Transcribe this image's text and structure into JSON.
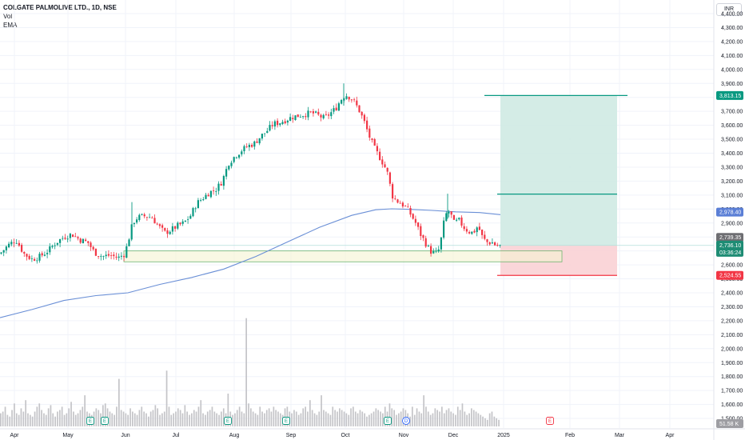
{
  "header": {
    "symbol_title": "COLGATE PALMOLIVE LTD., 1D, NSE",
    "vol_label": "Vol",
    "ema_label": "EMA",
    "currency": "INR"
  },
  "colors": {
    "up": "#089981",
    "down": "#f23645",
    "ema": "#6a8fd6",
    "volume": "#c4c4c8",
    "target_fill": "#cfeae3",
    "stop_fill": "#f9d2d5",
    "target_line": "#089981",
    "stop_line": "#f23645",
    "zone_fill": "#f5f4d2",
    "zone_border": "#6db46f",
    "ema_tag": "#5b7fd6",
    "price_tag": "#1e8c74",
    "gray_tag": "#6e6e72"
  },
  "price_tags": {
    "target": "3,813.15",
    "ema": "2,978.40",
    "prev_close": "2,739.35",
    "last": "2,736.10",
    "countdown": "03:36:24",
    "stop": "2,524.55",
    "volume": "51.58 K"
  },
  "event_markers": [
    "E",
    "E",
    "E",
    "E",
    "E",
    "D",
    "E"
  ],
  "chart_data": {
    "type": "candlestick",
    "title": "COLGATE PALMOLIVE LTD., 1D, NSE",
    "indicators": [
      "Vol",
      "EMA"
    ],
    "ylim": [
      1500,
      4500
    ],
    "yticks": [
      "4,400.00",
      "4,300.00",
      "4,200.00",
      "4,100.00",
      "4,000.00",
      "3,900.00",
      "3,800.00",
      "3,700.00",
      "3,600.00",
      "3,500.00",
      "3,400.00",
      "3,300.00",
      "3,200.00",
      "3,100.00",
      "3,000.00",
      "2,900.00",
      "2,800.00",
      "2,700.00",
      "2,600.00",
      "2,500.00",
      "2,400.00",
      "2,300.00",
      "2,200.00",
      "2,100.00",
      "2,000.00",
      "1,900.00",
      "1,800.00",
      "1,700.00",
      "1,600.00",
      "1,500.00"
    ],
    "xticks": [
      "Apr",
      "May",
      "Jun",
      "Jul",
      "Aug",
      "Sep",
      "Oct",
      "Nov",
      "Dec",
      "2025",
      "Feb",
      "Mar",
      "Apr"
    ],
    "price_path": [
      [
        0,
        2680
      ],
      [
        10,
        2740
      ],
      [
        20,
        2780
      ],
      [
        30,
        2680
      ],
      [
        40,
        2640
      ],
      [
        50,
        2660
      ],
      [
        60,
        2700
      ],
      [
        70,
        2760
      ],
      [
        80,
        2800
      ],
      [
        90,
        2820
      ],
      [
        100,
        2780
      ],
      [
        110,
        2760
      ],
      [
        118,
        2690
      ],
      [
        128,
        2660
      ],
      [
        138,
        2670
      ],
      [
        148,
        2650
      ],
      [
        156,
        2680
      ],
      [
        160,
        2760
      ],
      [
        166,
        2900
      ],
      [
        172,
        2940
      ],
      [
        180,
        2950
      ],
      [
        190,
        2940
      ],
      [
        198,
        2880
      ],
      [
        206,
        2830
      ],
      [
        214,
        2850
      ],
      [
        222,
        2880
      ],
      [
        230,
        2900
      ],
      [
        238,
        2950
      ],
      [
        246,
        3040
      ],
      [
        254,
        3080
      ],
      [
        262,
        3120
      ],
      [
        270,
        3140
      ],
      [
        278,
        3200
      ],
      [
        286,
        3330
      ],
      [
        294,
        3380
      ],
      [
        302,
        3420
      ],
      [
        310,
        3450
      ],
      [
        318,
        3470
      ],
      [
        326,
        3520
      ],
      [
        334,
        3560
      ],
      [
        342,
        3610
      ],
      [
        350,
        3620
      ],
      [
        358,
        3640
      ],
      [
        366,
        3660
      ],
      [
        374,
        3670
      ],
      [
        382,
        3680
      ],
      [
        390,
        3690
      ],
      [
        398,
        3670
      ],
      [
        406,
        3650
      ],
      [
        414,
        3690
      ],
      [
        420,
        3720
      ],
      [
        426,
        3780
      ],
      [
        432,
        3820
      ],
      [
        438,
        3800
      ],
      [
        444,
        3760
      ],
      [
        450,
        3700
      ],
      [
        456,
        3620
      ],
      [
        462,
        3520
      ],
      [
        468,
        3440
      ],
      [
        474,
        3380
      ],
      [
        480,
        3320
      ],
      [
        486,
        3240
      ],
      [
        490,
        3100
      ],
      [
        496,
        3060
      ],
      [
        502,
        3040
      ],
      [
        508,
        3010
      ],
      [
        514,
        2960
      ],
      [
        520,
        2900
      ],
      [
        526,
        2820
      ],
      [
        532,
        2760
      ],
      [
        538,
        2700
      ],
      [
        544,
        2680
      ],
      [
        548,
        2690
      ],
      [
        552,
        2790
      ],
      [
        556,
        2930
      ],
      [
        560,
        2990
      ],
      [
        564,
        2960
      ],
      [
        568,
        2900
      ],
      [
        574,
        2920
      ],
      [
        580,
        2870
      ],
      [
        586,
        2840
      ],
      [
        592,
        2830
      ],
      [
        598,
        2880
      ],
      [
        604,
        2790
      ],
      [
        610,
        2760
      ],
      [
        616,
        2760
      ],
      [
        620,
        2740
      ],
      [
        624,
        2736
      ],
      [
        628,
        2736
      ]
    ],
    "ema_series": [
      [
        0,
        2222
      ],
      [
        40,
        2280
      ],
      [
        80,
        2345
      ],
      [
        120,
        2380
      ],
      [
        160,
        2400
      ],
      [
        200,
        2460
      ],
      [
        240,
        2510
      ],
      [
        280,
        2570
      ],
      [
        320,
        2660
      ],
      [
        360,
        2765
      ],
      [
        400,
        2870
      ],
      [
        440,
        2955
      ],
      [
        470,
        2995
      ],
      [
        490,
        3002
      ],
      [
        510,
        2998
      ],
      [
        540,
        2990
      ],
      [
        570,
        2980
      ],
      [
        600,
        2975
      ],
      [
        626,
        2960
      ]
    ],
    "volume_bars_k": [
      40,
      45,
      60,
      35,
      30,
      50,
      70,
      40,
      35,
      55,
      45,
      80,
      40,
      35,
      30,
      45,
      60,
      70,
      50,
      40,
      35,
      55,
      65,
      40,
      30,
      45,
      50,
      60,
      35,
      40,
      55,
      75,
      45,
      35,
      40,
      50,
      60,
      95,
      45,
      40,
      35,
      45,
      55,
      50,
      40,
      65,
      70,
      55,
      45,
      40,
      35,
      60,
      145,
      50,
      45,
      40,
      35,
      55,
      45,
      40,
      35,
      50,
      60,
      45,
      40,
      30,
      45,
      50,
      65,
      55,
      35,
      40,
      45,
      170,
      60,
      35,
      40,
      45,
      55,
      50,
      40,
      65,
      45,
      35,
      40,
      50,
      45,
      60,
      80,
      40,
      35,
      45,
      50,
      60,
      45,
      40,
      35,
      45,
      55,
      40,
      100,
      45,
      35,
      40,
      50,
      60,
      45,
      40,
      330,
      70,
      55,
      45,
      40,
      35,
      60,
      45,
      40,
      50,
      55,
      45,
      60,
      50,
      45,
      40,
      35,
      55,
      60,
      45,
      40,
      50,
      45,
      35,
      40,
      55,
      60,
      45,
      80,
      50,
      40,
      35,
      45,
      95,
      50,
      45,
      40,
      35,
      60,
      50,
      45,
      55,
      50,
      45,
      40,
      35,
      55,
      60,
      45,
      40,
      50,
      45,
      40,
      30,
      35,
      40,
      45,
      55,
      50,
      45,
      40,
      60,
      45,
      70,
      55,
      50,
      35,
      40,
      45,
      55,
      50,
      40,
      30,
      60,
      35,
      55,
      45,
      40,
      95,
      60,
      45,
      35,
      40,
      55,
      50,
      45,
      60,
      40,
      50,
      55,
      45,
      40,
      35,
      60,
      50,
      70,
      45,
      35,
      40,
      55,
      50,
      45,
      40,
      35,
      30,
      25,
      20,
      40,
      45,
      30,
      25,
      20
    ],
    "position": {
      "entry": 2739.35,
      "target": 3813.15,
      "stop": 2524.55,
      "mid_line": 3107.0
    },
    "support_zone": [
      2622,
      2700
    ]
  }
}
